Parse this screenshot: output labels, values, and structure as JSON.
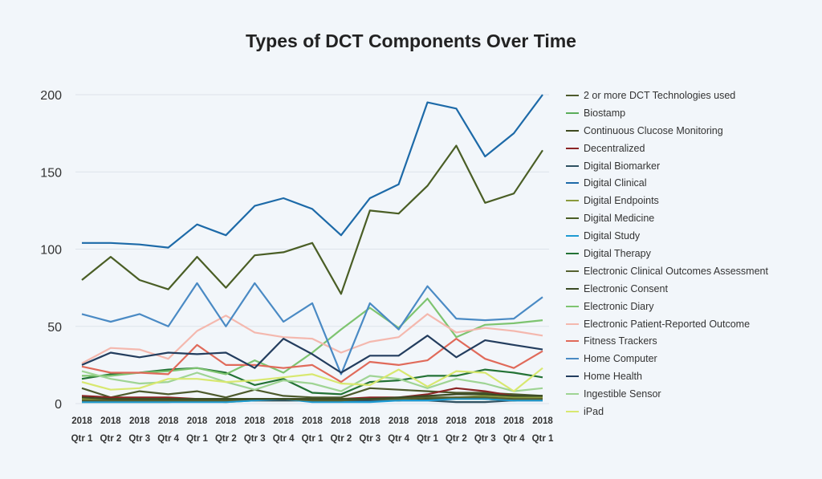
{
  "chart_data": {
    "type": "line",
    "title": "Types of DCT Components Over Time",
    "xlabel": "",
    "ylabel": "",
    "ylim": [
      0,
      200
    ],
    "yticks": [
      0,
      50,
      100,
      150,
      200
    ],
    "grid": true,
    "legend_position": "right",
    "categories": [
      [
        "2018",
        "Qtr 1"
      ],
      [
        "2018",
        "Qtr 2"
      ],
      [
        "2018",
        "Qtr 3"
      ],
      [
        "2018",
        "Qtr 4"
      ],
      [
        "2018",
        "Qtr 1"
      ],
      [
        "2018",
        "Qtr 2"
      ],
      [
        "2018",
        "Qtr 3"
      ],
      [
        "2018",
        "Qtr 4"
      ],
      [
        "2018",
        "Qtr 1"
      ],
      [
        "2018",
        "Qtr 2"
      ],
      [
        "2018",
        "Qtr 3"
      ],
      [
        "2018",
        "Qtr 4"
      ],
      [
        "2018",
        "Qtr 1"
      ],
      [
        "2018",
        "Qtr 2"
      ],
      [
        "2018",
        "Qtr 3"
      ],
      [
        "2018",
        "Qtr 4"
      ],
      [
        "2018",
        "Qtr 1"
      ]
    ],
    "series": [
      {
        "name": "2 or more DCT Technologies used",
        "color": "#4d5a2c",
        "values": [
          10,
          4,
          8,
          6,
          8,
          4,
          9,
          5,
          4,
          4,
          10,
          9,
          8,
          7,
          7,
          6,
          5
        ]
      },
      {
        "name": "Biostamp",
        "color": "#5aad5a",
        "values": [
          1,
          1,
          1,
          1,
          2,
          1,
          2,
          3,
          2,
          2,
          2,
          2,
          3,
          3,
          3,
          2,
          3
        ]
      },
      {
        "name": "Continuous Clucose Monitoring",
        "color": "#3e4a1f",
        "values": [
          3,
          3,
          3,
          2,
          2,
          2,
          2,
          2,
          2,
          2,
          2,
          2,
          3,
          4,
          3,
          2,
          3
        ]
      },
      {
        "name": "Decentralized",
        "color": "#8b2525",
        "values": [
          5,
          4,
          4,
          4,
          3,
          3,
          3,
          3,
          3,
          3,
          4,
          4,
          6,
          10,
          8,
          5,
          4
        ]
      },
      {
        "name": "Digital Biomarker",
        "color": "#2e5161",
        "values": [
          2,
          2,
          2,
          2,
          2,
          2,
          2,
          2,
          2,
          2,
          2,
          2,
          2,
          1,
          1,
          2,
          2
        ]
      },
      {
        "name": "Digital Clinical",
        "color": "#1d6aa8",
        "values": [
          104,
          104,
          103,
          101,
          116,
          109,
          128,
          133,
          126,
          109,
          133,
          142,
          195,
          191,
          160,
          175,
          200
        ]
      },
      {
        "name": "Digital Endpoints",
        "color": "#8a9a3c",
        "values": [
          3,
          3,
          3,
          3,
          3,
          3,
          3,
          3,
          3,
          3,
          3,
          3,
          4,
          4,
          5,
          4,
          4
        ]
      },
      {
        "name": "Digital Medicine",
        "color": "#4a5e25",
        "values": [
          80,
          95,
          80,
          74,
          95,
          75,
          96,
          98,
          104,
          71,
          125,
          123,
          141,
          167,
          130,
          136,
          164
        ]
      },
      {
        "name": "Digital Study",
        "color": "#1e9ad2",
        "values": [
          1,
          1,
          1,
          1,
          1,
          1,
          2,
          3,
          1,
          1,
          1,
          2,
          2,
          3,
          3,
          2,
          2
        ]
      },
      {
        "name": "Digital Therapy",
        "color": "#237235",
        "values": [
          16,
          19,
          20,
          22,
          23,
          20,
          12,
          16,
          7,
          6,
          14,
          15,
          18,
          18,
          22,
          20,
          17
        ]
      },
      {
        "name": "Electronic Clinical Outcomes Assessment",
        "color": "#56612f",
        "values": [
          2,
          2,
          2,
          2,
          2,
          2,
          3,
          3,
          2,
          2,
          3,
          3,
          4,
          4,
          4,
          3,
          3
        ]
      },
      {
        "name": "Electronic Consent",
        "color": "#3a4a24",
        "values": [
          4,
          3,
          3,
          3,
          3,
          3,
          3,
          3,
          3,
          3,
          3,
          4,
          5,
          6,
          6,
          5,
          5
        ]
      },
      {
        "name": "Electronic Diary",
        "color": "#7ec470",
        "values": [
          18,
          18,
          20,
          21,
          23,
          19,
          28,
          20,
          33,
          48,
          62,
          49,
          68,
          43,
          51,
          52,
          54
        ]
      },
      {
        "name": "Electronic Patient-Reported Outcome",
        "color": "#f4b8ae",
        "values": [
          26,
          36,
          35,
          29,
          47,
          57,
          46,
          43,
          42,
          33,
          40,
          43,
          58,
          46,
          49,
          47,
          44
        ]
      },
      {
        "name": "Fitness Trackers",
        "color": "#e06a5a",
        "values": [
          24,
          20,
          20,
          19,
          38,
          25,
          25,
          23,
          25,
          14,
          27,
          25,
          28,
          42,
          29,
          23,
          34
        ]
      },
      {
        "name": "Home Computer",
        "color": "#4a8ac4",
        "values": [
          58,
          53,
          58,
          50,
          78,
          50,
          78,
          53,
          65,
          19,
          65,
          48,
          76,
          55,
          54,
          55,
          69
        ]
      },
      {
        "name": "Home Health",
        "color": "#233d5e",
        "values": [
          25,
          33,
          30,
          33,
          32,
          33,
          23,
          42,
          32,
          20,
          31,
          31,
          44,
          30,
          41,
          38,
          35
        ]
      },
      {
        "name": "Ingestible Sensor",
        "color": "#9fd494",
        "values": [
          21,
          16,
          13,
          14,
          20,
          14,
          9,
          15,
          13,
          8,
          18,
          16,
          10,
          16,
          13,
          8,
          10
        ]
      },
      {
        "name": "iPad",
        "color": "#d8e870",
        "values": [
          14,
          9,
          10,
          16,
          16,
          14,
          15,
          17,
          19,
          13,
          12,
          22,
          11,
          21,
          20,
          8,
          23
        ]
      }
    ]
  }
}
